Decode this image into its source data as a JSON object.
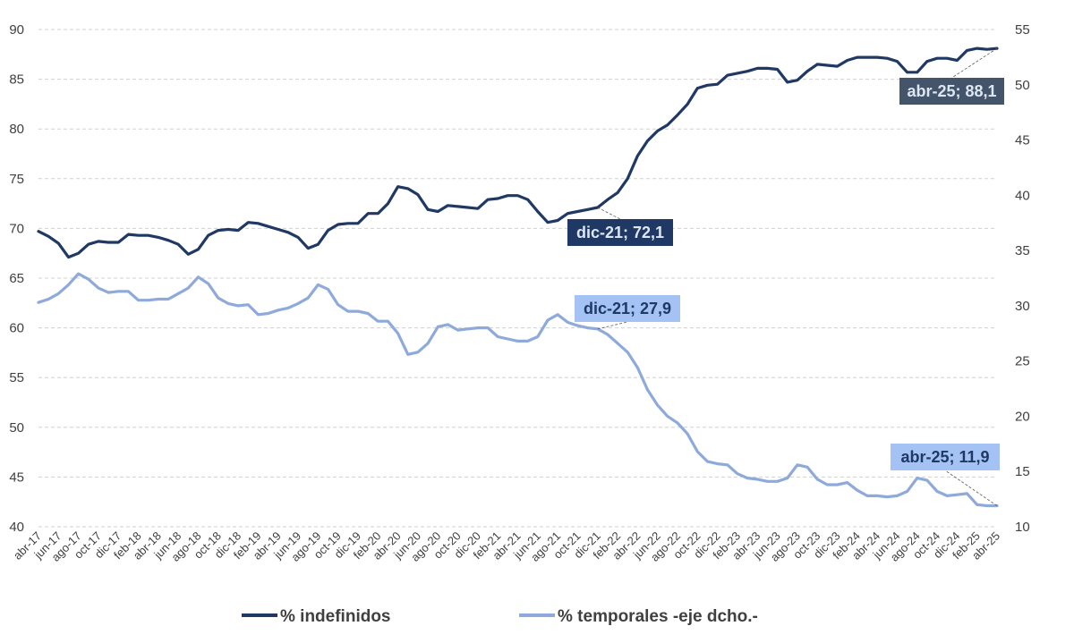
{
  "chart_data": {
    "type": "line",
    "x": [
      "abr-17",
      "may-17",
      "jun-17",
      "jul-17",
      "ago-17",
      "sep-17",
      "oct-17",
      "nov-17",
      "dic-17",
      "ene-18",
      "feb-18",
      "mar-18",
      "abr-18",
      "may-18",
      "jun-18",
      "jul-18",
      "ago-18",
      "sep-18",
      "oct-18",
      "nov-18",
      "dic-18",
      "ene-19",
      "feb-19",
      "mar-19",
      "abr-19",
      "may-19",
      "jun-19",
      "jul-19",
      "ago-19",
      "sep-19",
      "oct-19",
      "nov-19",
      "dic-19",
      "ene-20",
      "feb-20",
      "mar-20",
      "abr-20",
      "may-20",
      "jun-20",
      "jul-20",
      "ago-20",
      "sep-20",
      "oct-20",
      "nov-20",
      "dic-20",
      "ene-21",
      "feb-21",
      "mar-21",
      "abr-21",
      "may-21",
      "jun-21",
      "jul-21",
      "ago-21",
      "sep-21",
      "oct-21",
      "nov-21",
      "dic-21",
      "ene-22",
      "feb-22",
      "mar-22",
      "abr-22",
      "may-22",
      "jun-22",
      "jul-22",
      "ago-22",
      "sep-22",
      "oct-22",
      "nov-22",
      "dic-22",
      "ene-23",
      "feb-23",
      "mar-23",
      "abr-23",
      "may-23",
      "jun-23",
      "jul-23",
      "ago-23",
      "sep-23",
      "oct-23",
      "nov-23",
      "dic-23",
      "ene-24",
      "feb-24",
      "mar-24",
      "abr-24",
      "may-24",
      "jun-24",
      "jul-24",
      "ago-24",
      "sep-24",
      "oct-24",
      "nov-24",
      "dic-24",
      "ene-25",
      "feb-25",
      "mar-25",
      "abr-25"
    ],
    "x_tick_labels": [
      "abr-17",
      "jun-17",
      "ago-17",
      "oct-17",
      "dic-17",
      "feb-18",
      "abr-18",
      "jun-18",
      "ago-18",
      "oct-18",
      "dic-18",
      "feb-19",
      "abr-19",
      "jun-19",
      "ago-19",
      "oct-19",
      "dic-19",
      "feb-20",
      "abr-20",
      "jun-20",
      "ago-20",
      "oct-20",
      "dic-20",
      "feb-21",
      "abr-21",
      "jun-21",
      "ago-21",
      "oct-21",
      "dic-21",
      "feb-22",
      "abr-22",
      "jun-22",
      "ago-22",
      "oct-22",
      "dic-22",
      "feb-23",
      "abr-23",
      "jun-23",
      "ago-23",
      "oct-23",
      "dic-23",
      "feb-24",
      "abr-24",
      "jun-24",
      "ago-24",
      "oct-24",
      "dic-24",
      "feb-25",
      "abr-25"
    ],
    "series": [
      {
        "name": "% indefinidos",
        "axis": "left",
        "color": "#1f3864",
        "values": [
          69.7,
          69.2,
          68.5,
          67.1,
          67.5,
          68.4,
          68.7,
          68.6,
          68.6,
          69.4,
          69.3,
          69.3,
          69.1,
          68.8,
          68.4,
          67.4,
          67.9,
          69.3,
          69.8,
          69.9,
          69.8,
          70.6,
          70.5,
          70.2,
          69.9,
          69.6,
          69.1,
          68.0,
          68.4,
          69.8,
          70.4,
          70.5,
          70.5,
          71.5,
          71.5,
          72.5,
          74.2,
          74.0,
          73.4,
          71.9,
          71.7,
          72.3,
          72.2,
          72.1,
          72.0,
          72.9,
          73.0,
          73.3,
          73.3,
          72.9,
          71.7,
          70.6,
          70.8,
          71.5,
          71.7,
          71.9,
          72.1,
          72.9,
          73.6,
          75.0,
          77.3,
          78.8,
          79.8,
          80.4,
          81.4,
          82.5,
          84.1,
          84.4,
          84.5,
          85.4,
          85.6,
          85.8,
          86.1,
          86.1,
          86.0,
          84.7,
          84.9,
          85.8,
          86.5,
          86.4,
          86.3,
          86.9,
          87.2,
          87.2,
          87.2,
          87.1,
          86.8,
          85.7,
          85.7,
          86.8,
          87.1,
          87.1,
          86.9,
          87.9,
          88.1,
          88.0,
          88.1
        ]
      },
      {
        "name": "% temporales -eje dcho.-",
        "axis": "right",
        "color": "#8eaadb",
        "values": [
          30.3,
          30.6,
          31.1,
          31.9,
          32.9,
          32.4,
          31.6,
          31.2,
          31.3,
          31.3,
          30.5,
          30.5,
          30.6,
          30.6,
          31.1,
          31.6,
          32.6,
          32.0,
          30.7,
          30.2,
          30.0,
          30.1,
          29.2,
          29.3,
          29.6,
          29.8,
          30.2,
          30.7,
          31.9,
          31.5,
          30.1,
          29.5,
          29.5,
          29.3,
          28.6,
          28.6,
          27.5,
          25.6,
          25.8,
          26.6,
          28.1,
          28.3,
          27.8,
          27.9,
          28.0,
          28.0,
          27.2,
          27.0,
          26.8,
          26.8,
          27.2,
          28.7,
          29.2,
          28.5,
          28.2,
          28.0,
          27.9,
          27.4,
          26.6,
          25.8,
          24.4,
          22.4,
          21.0,
          20.0,
          19.4,
          18.4,
          16.8,
          15.9,
          15.7,
          15.6,
          14.8,
          14.4,
          14.3,
          14.1,
          14.1,
          14.4,
          15.6,
          15.4,
          14.3,
          13.8,
          13.8,
          14.0,
          13.3,
          12.8,
          12.8,
          12.7,
          12.8,
          13.2,
          14.4,
          14.2,
          13.2,
          12.8,
          12.9,
          13.0,
          12.0,
          11.9,
          11.9
        ]
      }
    ],
    "y_left": {
      "min": 40,
      "max": 90,
      "ticks": [
        40,
        45,
        50,
        55,
        60,
        65,
        70,
        75,
        80,
        85,
        90
      ]
    },
    "y_right": {
      "min": 10,
      "max": 55,
      "ticks": [
        10,
        15,
        20,
        25,
        30,
        35,
        40,
        45,
        50,
        55
      ]
    },
    "grid": "horizontal dashed",
    "legend_position": "bottom",
    "annotations": [
      {
        "text": "dic-21; 72,1",
        "series": 0,
        "x": "dic-21",
        "bg": "#1f3864",
        "fg": "#dde6f3"
      },
      {
        "text": "abr-25; 88,1",
        "series": 0,
        "x": "abr-25",
        "bg": "#44546a",
        "fg": "#dde6f3"
      },
      {
        "text": "dic-21; 27,9",
        "series": 1,
        "x": "dic-21",
        "bg": "#a4c2f4",
        "fg": "#1f3864"
      },
      {
        "text": "abr-25; 11,9",
        "series": 1,
        "x": "abr-25",
        "bg": "#a4c2f4",
        "fg": "#1f3864"
      }
    ]
  }
}
